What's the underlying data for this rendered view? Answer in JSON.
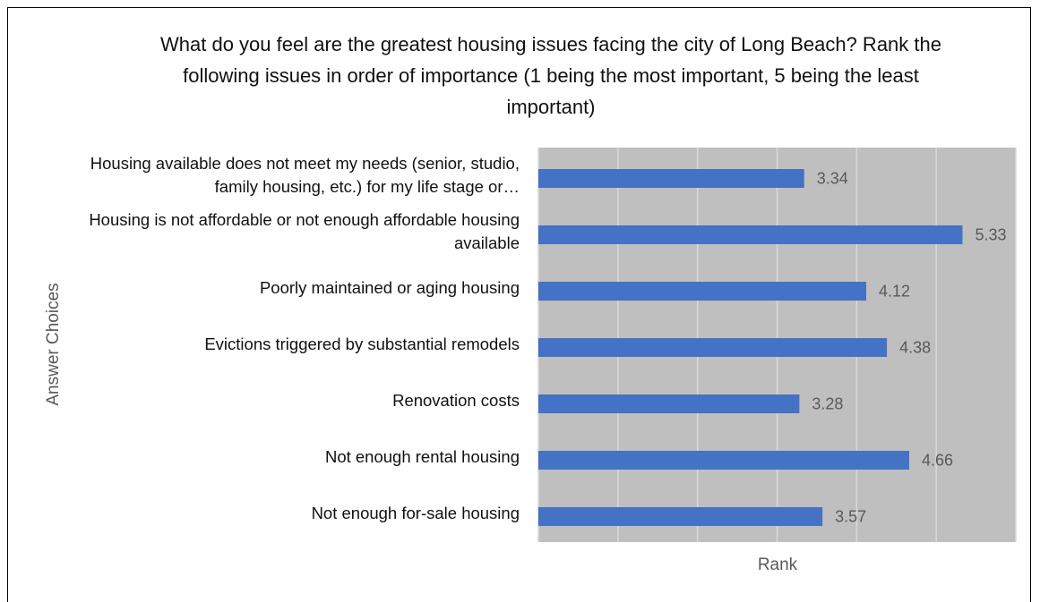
{
  "chart_data": {
    "type": "barh",
    "title": "What do you feel are the greatest housing issues facing the city of Long Beach? Rank the following issues in order of importance (1 being the most important, 5 being the least important)",
    "xlabel": "Rank",
    "ylabel": "Answer Choices",
    "categories": [
      "Housing available does not meet my needs (senior, studio, family housing, etc.) for my life stage or…",
      "Housing is not affordable or not enough affordable housing available",
      "Poorly maintained or aging housing",
      "Evictions triggered by substantial remodels",
      "Renovation costs",
      "Not enough rental housing",
      "Not enough for-sale housing"
    ],
    "values": [
      3.34,
      5.33,
      4.12,
      4.38,
      3.28,
      4.66,
      3.57
    ],
    "color": "#4472c4",
    "xlim": [
      0,
      6
    ],
    "xticks": [
      0,
      1,
      2,
      3,
      4,
      5,
      6
    ],
    "grid": true
  }
}
